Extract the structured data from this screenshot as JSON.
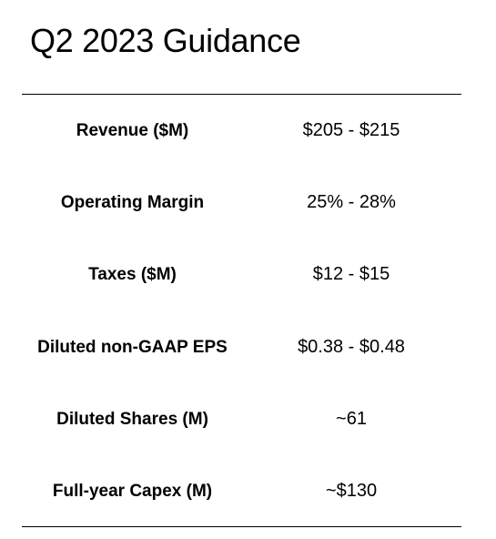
{
  "title": "Q2 2023 Guidance",
  "rows": [
    {
      "label": "Revenue ($M)",
      "value": "$205 - $215"
    },
    {
      "label": "Operating Margin",
      "value": "25% - 28%"
    },
    {
      "label": "Taxes ($M)",
      "value": "$12 - $15"
    },
    {
      "label": "Diluted non-GAAP EPS",
      "value": "$0.38 - $0.48"
    },
    {
      "label": "Diluted Shares (M)",
      "value": "~61"
    },
    {
      "label": "Full-year Capex (M)",
      "value": "~$130"
    }
  ]
}
